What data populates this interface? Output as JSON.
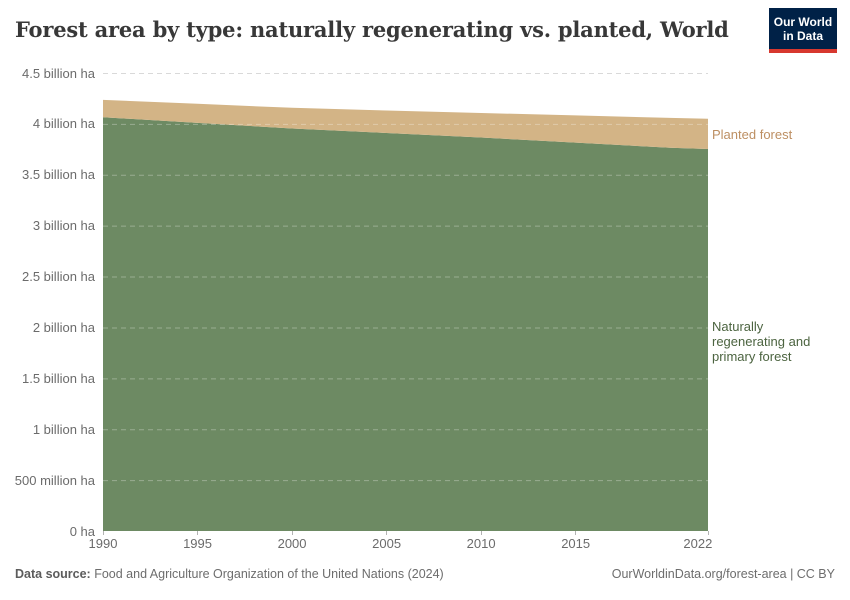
{
  "header": {
    "title": "Forest area by type: naturally regenerating vs. planted, World",
    "logo": {
      "line1": "Our World",
      "line2": "in Data",
      "bg_color": "#002147",
      "accent_color": "#d7382f"
    }
  },
  "chart_data": {
    "type": "area",
    "stacked": true,
    "title": "Forest area by type: naturally regenerating vs. planted, World",
    "unit": "hectares",
    "x": [
      1990,
      1995,
      2000,
      2005,
      2010,
      2015,
      2020,
      2022
    ],
    "series": [
      {
        "name": "Naturally regenerating and primary forest",
        "color": "#6d8a63",
        "label_color": "#4c6440",
        "values_million_ha": [
          4066,
          4010,
          3955,
          3910,
          3866,
          3816,
          3765,
          3753
        ]
      },
      {
        "name": "Planted forest",
        "color": "#d3b486",
        "label_color": "#bd8f62",
        "values_million_ha": [
          170,
          187,
          203,
          222,
          241,
          267,
          294,
          297
        ]
      }
    ],
    "total_million_ha": [
      4236,
      4197,
      4158,
      4132,
      4107,
      4083,
      4059,
      4050
    ],
    "xlim": [
      1990,
      2022
    ],
    "ylim": [
      0,
      4500
    ],
    "x_ticks": [
      1990,
      1995,
      2000,
      2005,
      2010,
      2015,
      2022
    ],
    "y_ticks": [
      {
        "value": 0,
        "label": "0 ha"
      },
      {
        "value": 500,
        "label": "500 million ha"
      },
      {
        "value": 1000,
        "label": "1 billion ha"
      },
      {
        "value": 1500,
        "label": "1.5 billion ha"
      },
      {
        "value": 2000,
        "label": "2 billion ha"
      },
      {
        "value": 2500,
        "label": "2.5 billion ha"
      },
      {
        "value": 3000,
        "label": "3 billion ha"
      },
      {
        "value": 3500,
        "label": "3.5 billion ha"
      },
      {
        "value": 4000,
        "label": "4 billion ha"
      },
      {
        "value": 4500,
        "label": "4.5 billion ha"
      }
    ],
    "grid": "horizontal-dashed",
    "grid_color": "#d9d9d9",
    "axis_text_color": "#6b6b6b",
    "legend_position": "right-inline"
  },
  "footer": {
    "source_prefix": "Data source:",
    "source_text": " Food and Agriculture Organization of the United Nations (2024)",
    "credit": "OurWorldinData.org/forest-area | CC BY"
  }
}
